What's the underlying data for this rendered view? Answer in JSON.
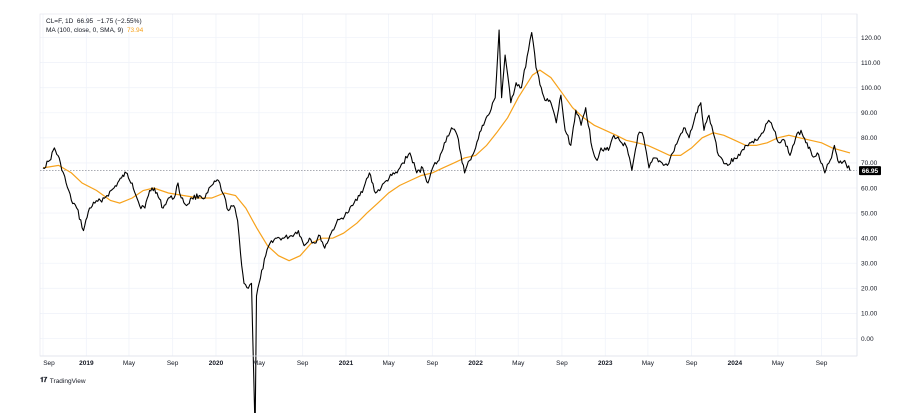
{
  "legend": {
    "symbol": "CL=F, 1D",
    "last": "66.95",
    "change": "−1.75 (−2.55%)",
    "ma_label": "MA (100, close, 0, SMA, 9)",
    "ma_value": "73.94"
  },
  "footer": {
    "brand": "TradingView"
  },
  "colors": {
    "price": "#000000",
    "ma": "#f7a21b",
    "grid": "#f0f3fa",
    "last_badge": "#000000"
  },
  "chart_data": {
    "type": "line",
    "price_axis": {
      "min": -10,
      "max": 130,
      "ticks": [
        120,
        110,
        100,
        90,
        80,
        70,
        60,
        50,
        40,
        30,
        20,
        10,
        0
      ],
      "labels": [
        "120.00",
        "110.00",
        "100.00",
        "90.00",
        "80.00",
        "70.00",
        "60.00",
        "50.00",
        "40.00",
        "30.00",
        "20.00",
        "10.00",
        "0.00"
      ]
    },
    "time_axis": {
      "range": [
        "2018-09-01",
        "2024-11-20"
      ],
      "ticks": [
        {
          "date": "2018-09-01",
          "label": "Sep",
          "year": false
        },
        {
          "date": "2019-01-01",
          "label": "2019",
          "year": true
        },
        {
          "date": "2019-05-01",
          "label": "May",
          "year": false
        },
        {
          "date": "2019-09-01",
          "label": "Sep",
          "year": false
        },
        {
          "date": "2020-01-01",
          "label": "2020",
          "year": true
        },
        {
          "date": "2020-05-01",
          "label": "May",
          "year": false
        },
        {
          "date": "2020-09-01",
          "label": "Sep",
          "year": false
        },
        {
          "date": "2021-01-01",
          "label": "2021",
          "year": true
        },
        {
          "date": "2021-05-01",
          "label": "May",
          "year": false
        },
        {
          "date": "2021-09-01",
          "label": "Sep",
          "year": false
        },
        {
          "date": "2022-01-01",
          "label": "2022",
          "year": true
        },
        {
          "date": "2022-05-01",
          "label": "May",
          "year": false
        },
        {
          "date": "2022-09-01",
          "label": "Sep",
          "year": false
        },
        {
          "date": "2023-01-01",
          "label": "2023",
          "year": true
        },
        {
          "date": "2023-05-01",
          "label": "May",
          "year": false
        },
        {
          "date": "2023-09-01",
          "label": "Sep",
          "year": false
        },
        {
          "date": "2024-01-01",
          "label": "2024",
          "year": true
        },
        {
          "date": "2024-05-01",
          "label": "May",
          "year": false
        },
        {
          "date": "2024-09-01",
          "label": "Sep",
          "year": false
        }
      ]
    },
    "last_price": 66.95,
    "series": [
      {
        "name": "CL=F",
        "points": [
          [
            "2018-09-01",
            68
          ],
          [
            "2018-09-20",
            71
          ],
          [
            "2018-10-03",
            76
          ],
          [
            "2018-10-20",
            70
          ],
          [
            "2018-11-05",
            62
          ],
          [
            "2018-11-20",
            55
          ],
          [
            "2018-12-05",
            52
          ],
          [
            "2018-12-24",
            43
          ],
          [
            "2019-01-10",
            52
          ],
          [
            "2019-01-25",
            54
          ],
          [
            "2019-02-10",
            55
          ],
          [
            "2019-02-28",
            57
          ],
          [
            "2019-03-20",
            60
          ],
          [
            "2019-04-10",
            64
          ],
          [
            "2019-04-23",
            66
          ],
          [
            "2019-05-10",
            62
          ],
          [
            "2019-05-31",
            53
          ],
          [
            "2019-06-15",
            52
          ],
          [
            "2019-06-28",
            59
          ],
          [
            "2019-07-12",
            60
          ],
          [
            "2019-08-05",
            52
          ],
          [
            "2019-08-20",
            56
          ],
          [
            "2019-09-05",
            56
          ],
          [
            "2019-09-16",
            62
          ],
          [
            "2019-09-25",
            56
          ],
          [
            "2019-10-10",
            53
          ],
          [
            "2019-10-25",
            56
          ],
          [
            "2019-11-15",
            57
          ],
          [
            "2019-12-01",
            56
          ],
          [
            "2019-12-20",
            61
          ],
          [
            "2020-01-08",
            63
          ],
          [
            "2020-01-20",
            58
          ],
          [
            "2020-02-05",
            51
          ],
          [
            "2020-02-20",
            53
          ],
          [
            "2020-03-02",
            47
          ],
          [
            "2020-03-10",
            34
          ],
          [
            "2020-03-20",
            22
          ],
          [
            "2020-04-01",
            20
          ],
          [
            "2020-04-10",
            22
          ],
          [
            "2020-04-20",
            -37
          ],
          [
            "2020-04-24",
            17
          ],
          [
            "2020-05-05",
            24
          ],
          [
            "2020-05-20",
            33
          ],
          [
            "2020-06-05",
            39
          ],
          [
            "2020-06-20",
            40
          ],
          [
            "2020-07-10",
            40
          ],
          [
            "2020-08-01",
            41
          ],
          [
            "2020-08-20",
            43
          ],
          [
            "2020-09-05",
            37
          ],
          [
            "2020-09-20",
            40
          ],
          [
            "2020-10-05",
            38
          ],
          [
            "2020-10-20",
            41
          ],
          [
            "2020-11-02",
            36
          ],
          [
            "2020-11-20",
            42
          ],
          [
            "2020-12-05",
            46
          ],
          [
            "2020-12-20",
            48
          ],
          [
            "2021-01-05",
            50
          ],
          [
            "2021-01-20",
            53
          ],
          [
            "2021-02-05",
            57
          ],
          [
            "2021-02-20",
            60
          ],
          [
            "2021-03-08",
            66
          ],
          [
            "2021-03-25",
            58
          ],
          [
            "2021-04-10",
            60
          ],
          [
            "2021-04-25",
            63
          ],
          [
            "2021-05-10",
            65
          ],
          [
            "2021-05-25",
            66
          ],
          [
            "2021-06-10",
            70
          ],
          [
            "2021-06-30",
            74
          ],
          [
            "2021-07-19",
            66
          ],
          [
            "2021-08-05",
            68
          ],
          [
            "2021-08-20",
            62
          ],
          [
            "2021-09-05",
            69
          ],
          [
            "2021-09-20",
            71
          ],
          [
            "2021-10-05",
            78
          ],
          [
            "2021-10-25",
            84
          ],
          [
            "2021-11-10",
            81
          ],
          [
            "2021-12-01",
            66
          ],
          [
            "2021-12-15",
            71
          ],
          [
            "2022-01-01",
            76
          ],
          [
            "2022-01-20",
            85
          ],
          [
            "2022-02-10",
            90
          ],
          [
            "2022-02-25",
            96
          ],
          [
            "2022-03-08",
            123
          ],
          [
            "2022-03-15",
            96
          ],
          [
            "2022-03-25",
            113
          ],
          [
            "2022-04-10",
            94
          ],
          [
            "2022-04-25",
            102
          ],
          [
            "2022-05-10",
            100
          ],
          [
            "2022-05-30",
            115
          ],
          [
            "2022-06-08",
            122
          ],
          [
            "2022-06-20",
            108
          ],
          [
            "2022-07-05",
            100
          ],
          [
            "2022-07-15",
            95
          ],
          [
            "2022-08-01",
            94
          ],
          [
            "2022-08-16",
            86
          ],
          [
            "2022-08-29",
            97
          ],
          [
            "2022-09-10",
            83
          ],
          [
            "2022-09-26",
            77
          ],
          [
            "2022-10-10",
            91
          ],
          [
            "2022-10-25",
            85
          ],
          [
            "2022-11-07",
            92
          ],
          [
            "2022-11-25",
            76
          ],
          [
            "2022-12-09",
            71
          ],
          [
            "2022-12-20",
            76
          ],
          [
            "2023-01-10",
            75
          ],
          [
            "2023-01-25",
            81
          ],
          [
            "2023-02-10",
            79
          ],
          [
            "2023-02-28",
            77
          ],
          [
            "2023-03-17",
            67
          ],
          [
            "2023-04-03",
            81
          ],
          [
            "2023-04-15",
            82
          ],
          [
            "2023-05-04",
            68
          ],
          [
            "2023-05-20",
            72
          ],
          [
            "2023-06-10",
            70
          ],
          [
            "2023-06-25",
            69
          ],
          [
            "2023-07-10",
            74
          ],
          [
            "2023-07-25",
            79
          ],
          [
            "2023-08-10",
            84
          ],
          [
            "2023-08-25",
            80
          ],
          [
            "2023-09-10",
            88
          ],
          [
            "2023-09-27",
            94
          ],
          [
            "2023-10-06",
            83
          ],
          [
            "2023-10-20",
            89
          ],
          [
            "2023-11-05",
            80
          ],
          [
            "2023-11-16",
            73
          ],
          [
            "2023-12-12",
            69
          ],
          [
            "2023-12-30",
            72
          ],
          [
            "2024-01-15",
            73
          ],
          [
            "2024-01-30",
            77
          ],
          [
            "2024-02-15",
            78
          ],
          [
            "2024-03-01",
            79
          ],
          [
            "2024-03-20",
            82
          ],
          [
            "2024-04-05",
            87
          ],
          [
            "2024-04-20",
            83
          ],
          [
            "2024-05-05",
            78
          ],
          [
            "2024-05-20",
            79
          ],
          [
            "2024-06-04",
            73
          ],
          [
            "2024-06-20",
            80
          ],
          [
            "2024-07-05",
            83
          ],
          [
            "2024-07-22",
            78
          ],
          [
            "2024-08-05",
            73
          ],
          [
            "2024-08-20",
            74
          ],
          [
            "2024-09-10",
            66
          ],
          [
            "2024-09-25",
            71
          ],
          [
            "2024-10-07",
            77
          ],
          [
            "2024-10-20",
            70
          ],
          [
            "2024-11-05",
            71
          ],
          [
            "2024-11-20",
            66.95
          ]
        ]
      },
      {
        "name": "MA (100, close, 0, SMA, 9)",
        "points": [
          [
            "2018-09-01",
            68
          ],
          [
            "2018-10-15",
            69
          ],
          [
            "2018-11-20",
            66
          ],
          [
            "2018-12-20",
            62
          ],
          [
            "2019-01-30",
            59
          ],
          [
            "2019-03-10",
            55
          ],
          [
            "2019-04-05",
            54
          ],
          [
            "2019-05-10",
            56
          ],
          [
            "2019-06-10",
            59
          ],
          [
            "2019-07-10",
            60
          ],
          [
            "2019-08-20",
            58
          ],
          [
            "2019-10-01",
            57
          ],
          [
            "2019-11-15",
            56
          ],
          [
            "2019-12-20",
            56
          ],
          [
            "2020-01-25",
            58
          ],
          [
            "2020-02-25",
            57
          ],
          [
            "2020-03-25",
            52
          ],
          [
            "2020-04-25",
            44
          ],
          [
            "2020-05-25",
            37
          ],
          [
            "2020-06-25",
            33
          ],
          [
            "2020-07-25",
            31
          ],
          [
            "2020-08-25",
            33
          ],
          [
            "2020-09-25",
            38
          ],
          [
            "2020-10-25",
            40
          ],
          [
            "2020-11-25",
            40
          ],
          [
            "2020-12-25",
            42
          ],
          [
            "2021-02-01",
            46
          ],
          [
            "2021-03-01",
            50
          ],
          [
            "2021-04-01",
            54
          ],
          [
            "2021-05-01",
            58
          ],
          [
            "2021-06-01",
            61
          ],
          [
            "2021-07-01",
            63
          ],
          [
            "2021-08-01",
            65
          ],
          [
            "2021-09-01",
            66
          ],
          [
            "2021-10-01",
            68
          ],
          [
            "2021-11-01",
            70
          ],
          [
            "2021-12-01",
            72
          ],
          [
            "2022-01-01",
            73
          ],
          [
            "2022-02-01",
            77
          ],
          [
            "2022-03-01",
            82
          ],
          [
            "2022-04-01",
            88
          ],
          [
            "2022-05-01",
            96
          ],
          [
            "2022-06-10",
            105
          ],
          [
            "2022-07-01",
            107
          ],
          [
            "2022-08-01",
            104
          ],
          [
            "2022-09-01",
            98
          ],
          [
            "2022-10-01",
            92
          ],
          [
            "2022-11-01",
            88
          ],
          [
            "2022-12-01",
            85
          ],
          [
            "2023-01-01",
            83
          ],
          [
            "2023-02-01",
            81
          ],
          [
            "2023-03-01",
            79
          ],
          [
            "2023-04-01",
            78
          ],
          [
            "2023-05-01",
            77
          ],
          [
            "2023-06-01",
            75
          ],
          [
            "2023-07-01",
            73
          ],
          [
            "2023-08-01",
            73
          ],
          [
            "2023-09-01",
            76
          ],
          [
            "2023-10-01",
            80
          ],
          [
            "2023-11-01",
            82
          ],
          [
            "2023-12-01",
            81
          ],
          [
            "2024-01-01",
            79
          ],
          [
            "2024-02-01",
            77
          ],
          [
            "2024-03-01",
            77
          ],
          [
            "2024-04-01",
            78
          ],
          [
            "2024-05-01",
            80
          ],
          [
            "2024-06-01",
            81
          ],
          [
            "2024-07-01",
            80
          ],
          [
            "2024-08-01",
            79
          ],
          [
            "2024-09-01",
            78
          ],
          [
            "2024-10-01",
            76
          ],
          [
            "2024-11-20",
            74
          ]
        ]
      }
    ]
  }
}
